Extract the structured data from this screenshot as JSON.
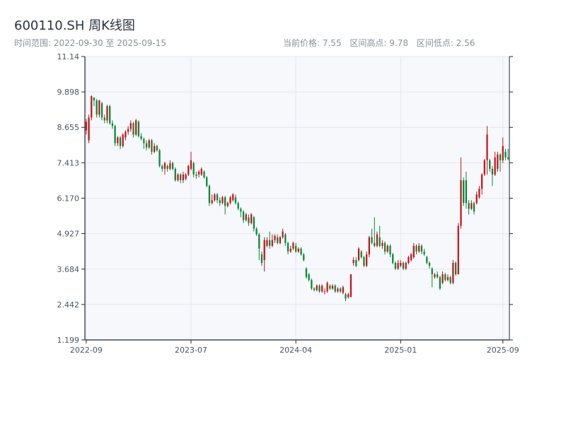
{
  "header": {
    "title": "600110.SH 周K线图",
    "date_range": "时间范围: 2022-09-30 至 2025-09-15",
    "current_price": "当前价格: 7.55",
    "range_high": "区间高点: 9.78",
    "range_low": "区间低点: 2.56"
  },
  "colors": {
    "up": "#c8161d",
    "down": "#0a8a3a",
    "plot_bg": "#f6f8fb",
    "grid": "#e3e7ee",
    "axis": "#1f2933"
  },
  "chart_data": {
    "type": "candlestick",
    "title": "600110.SH 周K线图",
    "xlabel": "",
    "ylabel": "",
    "ylim": [
      1.199,
      11.14
    ],
    "y_ticks": [
      "1.199",
      "2.442",
      "3.684",
      "4.927",
      "6.170",
      "7.413",
      "8.655",
      "9.898",
      "11.14"
    ],
    "x_ticks": [
      {
        "label": "2022-09",
        "index": 0
      },
      {
        "label": "2023-07",
        "index": 40
      },
      {
        "label": "2024-04",
        "index": 80
      },
      {
        "label": "2025-01",
        "index": 120
      },
      {
        "label": "2025-09",
        "index": 159
      }
    ],
    "grid": true,
    "candles": [
      [
        8.55,
        8.85,
        8.95,
        8.4
      ],
      [
        8.2,
        9.0,
        9.1,
        8.1
      ],
      [
        9.0,
        9.75,
        9.78,
        8.9
      ],
      [
        9.7,
        9.6,
        9.7,
        9.4
      ],
      [
        9.6,
        9.1,
        9.65,
        9.0
      ],
      [
        9.1,
        9.6,
        9.62,
        9.0
      ],
      [
        9.5,
        9.0,
        9.55,
        8.9
      ],
      [
        9.0,
        8.9,
        9.1,
        8.8
      ],
      [
        8.9,
        9.4,
        9.45,
        8.8
      ],
      [
        9.4,
        8.8,
        9.45,
        8.75
      ],
      [
        8.8,
        8.7,
        8.9,
        8.6
      ],
      [
        8.7,
        8.1,
        8.75,
        8.0
      ],
      [
        8.1,
        8.3,
        8.35,
        8.0
      ],
      [
        8.3,
        8.0,
        8.35,
        7.9
      ],
      [
        8.0,
        8.4,
        8.45,
        7.95
      ],
      [
        8.3,
        8.5,
        8.55,
        8.2
      ],
      [
        8.5,
        8.6,
        8.7,
        8.4
      ],
      [
        8.6,
        8.8,
        8.9,
        8.5
      ],
      [
        8.8,
        8.4,
        8.85,
        8.3
      ],
      [
        8.4,
        8.9,
        8.95,
        8.35
      ],
      [
        8.85,
        8.35,
        8.9,
        8.3
      ],
      [
        8.35,
        8.25,
        8.45,
        8.2
      ],
      [
        8.25,
        8.1,
        8.3,
        7.9
      ],
      [
        8.1,
        7.95,
        8.2,
        7.85
      ],
      [
        7.95,
        8.2,
        8.25,
        7.9
      ],
      [
        8.2,
        7.8,
        8.25,
        7.7
      ],
      [
        7.8,
        8.0,
        8.1,
        7.75
      ],
      [
        8.0,
        7.85,
        8.05,
        7.8
      ],
      [
        7.85,
        7.3,
        7.9,
        7.25
      ],
      [
        7.3,
        7.2,
        7.35,
        7.1
      ],
      [
        7.2,
        7.4,
        7.45,
        7.0
      ],
      [
        7.3,
        7.2,
        7.35,
        7.1
      ],
      [
        7.2,
        7.4,
        7.5,
        7.15
      ],
      [
        7.4,
        7.2,
        7.45,
        7.15
      ],
      [
        7.2,
        6.8,
        7.25,
        6.75
      ],
      [
        6.8,
        7.0,
        7.05,
        6.75
      ],
      [
        7.0,
        6.8,
        7.05,
        6.7
      ],
      [
        6.8,
        7.0,
        7.1,
        6.7
      ],
      [
        6.85,
        7.0,
        7.05,
        6.8
      ],
      [
        7.0,
        7.3,
        7.35,
        6.95
      ],
      [
        7.2,
        7.5,
        7.8,
        7.15
      ],
      [
        7.4,
        7.0,
        7.45,
        6.9
      ],
      [
        7.0,
        6.95,
        7.1,
        6.85
      ],
      [
        7.0,
        7.1,
        7.15,
        6.9
      ],
      [
        7.0,
        7.2,
        7.25,
        6.95
      ],
      [
        7.1,
        6.9,
        7.15,
        6.85
      ],
      [
        6.9,
        6.6,
        6.95,
        6.55
      ],
      [
        6.6,
        6.0,
        6.65,
        5.9
      ],
      [
        6.0,
        6.1,
        6.3,
        5.95
      ],
      [
        6.1,
        6.3,
        6.35,
        6.05
      ],
      [
        6.3,
        6.1,
        6.35,
        6.0
      ],
      [
        6.1,
        6.0,
        6.2,
        5.9
      ],
      [
        6.0,
        6.2,
        6.25,
        5.95
      ],
      [
        6.2,
        5.9,
        6.25,
        5.6
      ],
      [
        5.9,
        6.0,
        6.05,
        5.85
      ],
      [
        6.0,
        6.2,
        6.25,
        5.95
      ],
      [
        6.1,
        6.3,
        6.35,
        6.05
      ],
      [
        6.2,
        6.0,
        6.3,
        5.95
      ],
      [
        6.0,
        5.8,
        6.05,
        5.75
      ],
      [
        5.8,
        5.7,
        5.85,
        5.5
      ],
      [
        5.7,
        5.4,
        5.75,
        5.3
      ],
      [
        5.4,
        5.6,
        5.65,
        5.35
      ],
      [
        5.5,
        5.3,
        5.6,
        5.2
      ],
      [
        5.3,
        5.6,
        5.65,
        5.25
      ],
      [
        5.5,
        5.1,
        5.55,
        5.0
      ],
      [
        5.1,
        4.9,
        5.15,
        4.85
      ],
      [
        4.9,
        4.4,
        4.95,
        4.0
      ],
      [
        4.2,
        3.9,
        4.3,
        3.8
      ],
      [
        4.0,
        4.7,
        4.8,
        3.6
      ],
      [
        4.5,
        4.7,
        4.8,
        4.45
      ],
      [
        4.7,
        4.5,
        5.0,
        4.4
      ],
      [
        4.5,
        4.7,
        4.9,
        4.45
      ],
      [
        4.7,
        4.85,
        4.9,
        4.6
      ],
      [
        4.8,
        4.6,
        4.9,
        4.55
      ],
      [
        4.6,
        4.8,
        4.85,
        4.55
      ],
      [
        4.8,
        5.0,
        5.1,
        4.75
      ],
      [
        4.9,
        4.6,
        4.95,
        4.5
      ],
      [
        4.6,
        4.3,
        4.65,
        4.2
      ],
      [
        4.3,
        4.4,
        4.5,
        4.25
      ],
      [
        4.4,
        4.6,
        4.65,
        4.35
      ],
      [
        4.5,
        4.3,
        4.6,
        4.25
      ],
      [
        4.3,
        4.4,
        4.45,
        4.25
      ],
      [
        4.4,
        4.2,
        4.45,
        4.15
      ],
      [
        4.2,
        4.0,
        4.25,
        3.95
      ],
      [
        3.7,
        3.4,
        3.75,
        3.35
      ],
      [
        3.5,
        3.3,
        3.55,
        3.25
      ],
      [
        3.3,
        3.0,
        3.35,
        2.95
      ],
      [
        3.0,
        2.95,
        3.05,
        2.9
      ],
      [
        2.95,
        3.1,
        3.15,
        2.9
      ],
      [
        3.1,
        2.9,
        3.15,
        2.85
      ],
      [
        2.9,
        3.1,
        3.15,
        2.85
      ],
      [
        2.9,
        2.9,
        3.0,
        2.8
      ],
      [
        2.9,
        3.2,
        3.25,
        2.85
      ],
      [
        3.1,
        3.0,
        3.15,
        2.95
      ],
      [
        3.0,
        3.1,
        3.15,
        2.95
      ],
      [
        3.1,
        2.9,
        3.15,
        2.85
      ],
      [
        2.9,
        3.0,
        3.05,
        2.85
      ],
      [
        3.0,
        2.9,
        3.05,
        2.85
      ],
      [
        2.85,
        3.05,
        3.1,
        2.8
      ],
      [
        2.8,
        2.65,
        2.85,
        2.56
      ],
      [
        2.7,
        2.8,
        2.85,
        2.65
      ],
      [
        2.7,
        3.5,
        3.5,
        2.7
      ],
      [
        3.9,
        4.0,
        4.1,
        3.8
      ],
      [
        4.0,
        3.8,
        4.1,
        3.75
      ],
      [
        4.0,
        4.4,
        4.45,
        3.95
      ],
      [
        4.3,
        4.1,
        4.35,
        4.05
      ],
      [
        4.1,
        3.8,
        4.15,
        3.75
      ],
      [
        3.8,
        4.2,
        4.3,
        3.75
      ],
      [
        4.2,
        4.8,
        4.85,
        4.1
      ],
      [
        4.8,
        4.6,
        5.1,
        4.55
      ],
      [
        4.6,
        4.5,
        5.5,
        4.45
      ],
      [
        4.5,
        4.9,
        5.0,
        4.45
      ],
      [
        4.8,
        4.5,
        5.2,
        4.45
      ],
      [
        4.5,
        4.6,
        4.7,
        4.4
      ],
      [
        4.6,
        4.3,
        4.65,
        4.2
      ],
      [
        4.3,
        4.5,
        4.55,
        4.25
      ],
      [
        4.5,
        4.2,
        4.55,
        4.1
      ],
      [
        4.2,
        3.9,
        4.25,
        3.85
      ],
      [
        3.9,
        3.7,
        3.95,
        3.65
      ],
      [
        3.7,
        3.9,
        4.0,
        3.65
      ],
      [
        3.8,
        3.9,
        4.0,
        3.75
      ],
      [
        3.9,
        3.7,
        3.95,
        3.65
      ],
      [
        3.7,
        3.9,
        3.95,
        3.65
      ],
      [
        3.9,
        4.1,
        4.15,
        3.85
      ],
      [
        4.0,
        4.2,
        4.25,
        3.95
      ],
      [
        4.1,
        4.5,
        4.6,
        4.05
      ],
      [
        4.5,
        4.3,
        4.55,
        4.2
      ],
      [
        4.3,
        4.5,
        4.6,
        4.25
      ],
      [
        4.5,
        4.3,
        4.55,
        4.2
      ],
      [
        4.3,
        4.2,
        4.4,
        4.15
      ],
      [
        4.1,
        3.9,
        4.15,
        3.85
      ],
      [
        3.9,
        3.8,
        3.95,
        3.7
      ],
      [
        3.7,
        3.5,
        3.75,
        3.05
      ],
      [
        3.4,
        3.5,
        3.55,
        3.35
      ],
      [
        3.5,
        3.4,
        3.6,
        3.35
      ],
      [
        3.4,
        3.0,
        3.45,
        2.95
      ],
      [
        3.2,
        3.5,
        3.6,
        3.15
      ],
      [
        3.5,
        3.3,
        3.55,
        3.25
      ],
      [
        3.3,
        3.4,
        3.5,
        3.25
      ],
      [
        3.4,
        3.2,
        3.45,
        3.15
      ],
      [
        3.2,
        3.9,
        4.0,
        3.15
      ],
      [
        3.9,
        3.5,
        3.95,
        3.45
      ],
      [
        3.5,
        5.2,
        5.3,
        3.5
      ],
      [
        5.2,
        6.8,
        7.6,
        5.1
      ],
      [
        6.8,
        6.0,
        6.9,
        5.9
      ],
      [
        6.8,
        6.0,
        7.1,
        5.8
      ],
      [
        6.0,
        5.8,
        6.1,
        5.6
      ],
      [
        5.8,
        6.0,
        6.1,
        5.75
      ],
      [
        6.0,
        5.7,
        6.05,
        5.6
      ],
      [
        6.0,
        6.3,
        6.4,
        5.95
      ],
      [
        6.2,
        6.5,
        6.6,
        6.15
      ],
      [
        6.5,
        7.0,
        7.05,
        6.3
      ],
      [
        7.0,
        7.5,
        7.55,
        6.95
      ],
      [
        7.5,
        8.4,
        8.7,
        7.0
      ],
      [
        7.5,
        7.2,
        7.55,
        7.1
      ],
      [
        7.2,
        7.0,
        7.3,
        6.6
      ],
      [
        7.0,
        7.6,
        7.8,
        6.95
      ],
      [
        7.2,
        7.7,
        7.8,
        7.1
      ],
      [
        7.7,
        7.5,
        7.75,
        7.1
      ],
      [
        7.5,
        8.0,
        8.3,
        7.4
      ],
      [
        7.8,
        7.6,
        7.9,
        7.5
      ],
      [
        7.6,
        7.55,
        7.9,
        7.5
      ]
    ]
  }
}
